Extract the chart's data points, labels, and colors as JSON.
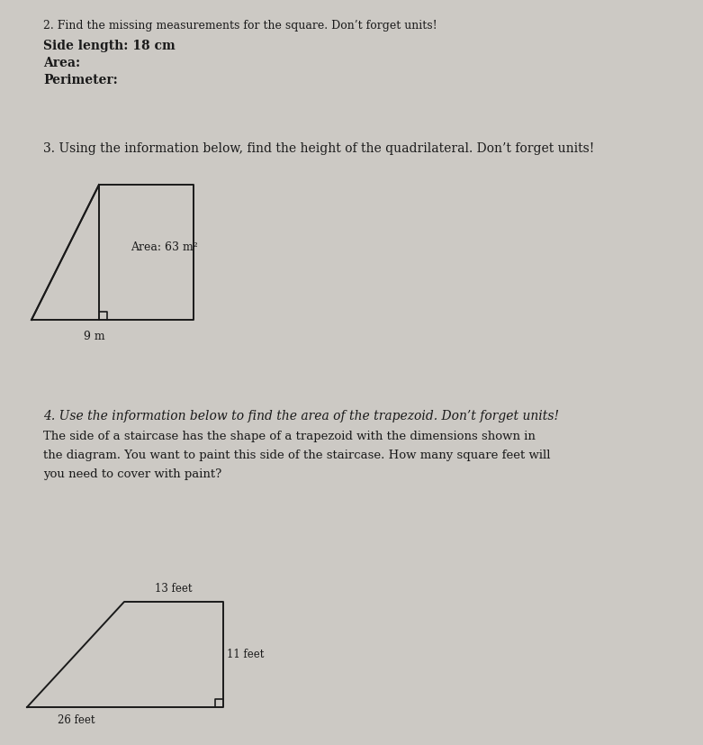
{
  "bg_color": "#ccc9c4",
  "text_color": "#1a1a1a",
  "section2_title": "2. Find the missing measurements for the square. Don’t forget units!",
  "section2_line1": "Side length: 18 cm",
  "section2_line2": "Area:",
  "section2_line3": "Perimeter:",
  "section3_title": "3. Using the information below, find the height of the quadrilateral. Don’t forget units!",
  "section3_area_label": "Area: 63 m²",
  "section3_base_label": "9 m",
  "section4_title": "4. Use the information below to find the area of the trapezoid. Don’t forget units!",
  "section4_desc1": "The side of a staircase has the shape of a trapezoid with the dimensions shown in",
  "section4_desc2": "the diagram. You want to paint this side of the staircase. How many square feet will",
  "section4_desc3": "you need to cover with paint?",
  "section4_top_label": "13 feet",
  "section4_right_label": "11 feet",
  "section4_bottom_label": "26 feet",
  "figw": 7.81,
  "figh": 8.27,
  "dpi": 100
}
